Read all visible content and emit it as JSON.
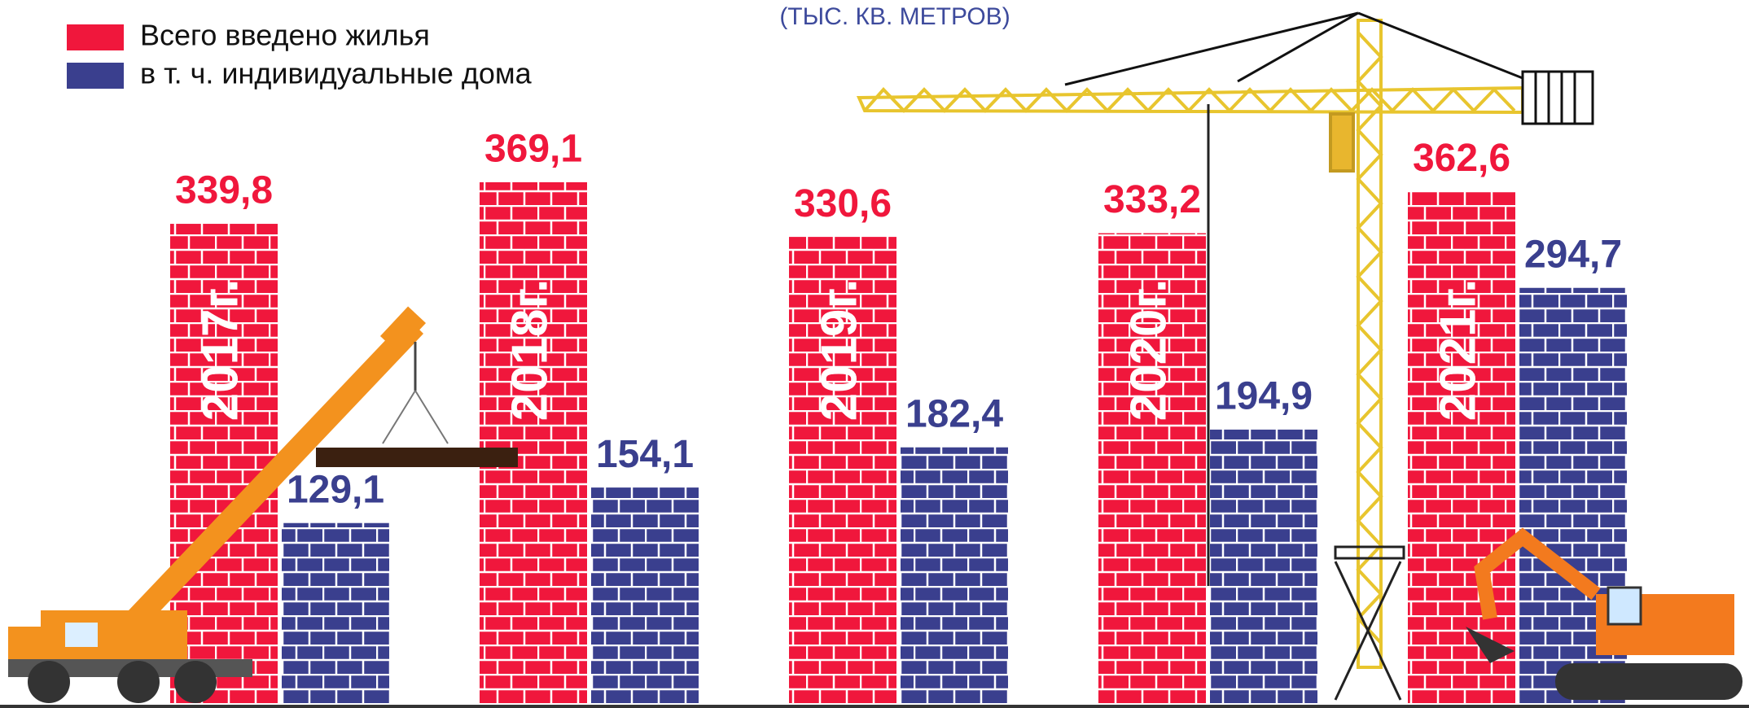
{
  "chart_data": {
    "type": "bar",
    "subtitle": "(ТЫС. КВ. МЕТРОВ)",
    "categories": [
      "2017г.",
      "2018г.",
      "2019г.",
      "2020г.",
      "2021г."
    ],
    "series": [
      {
        "name": "Всего введено жилья",
        "color": "#f0173c",
        "values": [
          339.8,
          369.1,
          330.6,
          333.2,
          362.6
        ],
        "value_labels": [
          "339,8",
          "369,1",
          "330,6",
          "333,2",
          "362,6"
        ]
      },
      {
        "name": "в т. ч. индивидуальные дома",
        "color": "#3a3f8e",
        "values": [
          129.1,
          154.1,
          182.4,
          194.9,
          294.7
        ],
        "value_labels": [
          "129,1",
          "154,1",
          "182,4",
          "194,9",
          "294,7"
        ]
      }
    ]
  }
}
